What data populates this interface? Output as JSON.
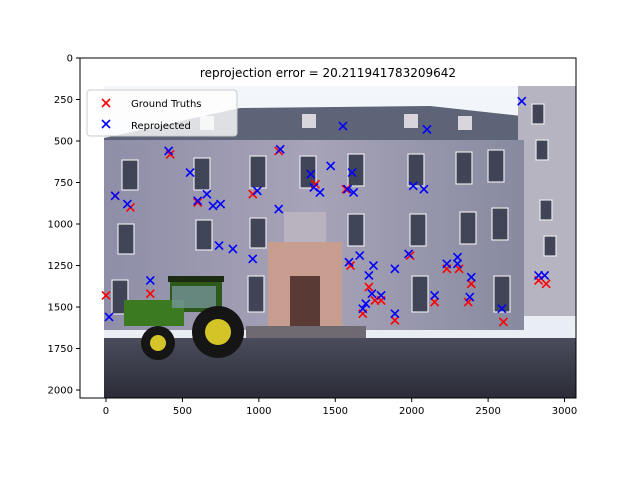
{
  "chart_data": {
    "type": "scatter",
    "title": "reprojection error = 20.211941783209642",
    "xlabel": "",
    "ylabel": "",
    "xlim": [
      -170,
      3075
    ],
    "ylim": [
      2048,
      0
    ],
    "y_inverted": true,
    "xticks": [
      0,
      500,
      1000,
      1500,
      2000,
      2500,
      3000
    ],
    "xtick_labels": [
      "0",
      "500",
      "1000",
      "1500",
      "2000",
      "2500",
      "3000"
    ],
    "yticks": [
      0,
      250,
      500,
      750,
      1000,
      1250,
      1500,
      1750,
      2000
    ],
    "ytick_labels": [
      "0",
      "250",
      "500",
      "750",
      "1000",
      "1250",
      "1500",
      "1750",
      "2000"
    ],
    "grid": false,
    "legend_position": "top-left",
    "background_image": "photo of a baroque palace courtyard with a green tractor, extent x 0–3072, y 0–2048",
    "series": [
      {
        "name": "Ground Truths",
        "color": "#ff0000",
        "marker": "x",
        "x": [
          0,
          290,
          60,
          160,
          420,
          600,
          960,
          1130,
          1370,
          1570,
          1600,
          1680,
          1720,
          1760,
          1800,
          1890,
          1990,
          2150,
          2230,
          2310,
          2370,
          2390,
          2600,
          2830,
          2880
        ],
        "y": [
          1430,
          1420,
          830,
          900,
          580,
          870,
          820,
          560,
          760,
          790,
          1250,
          1540,
          1380,
          1460,
          1460,
          1580,
          1190,
          1470,
          1270,
          1270,
          1470,
          1360,
          1590,
          1340,
          1360
        ]
      },
      {
        "name": "Reprojected",
        "color": "#0000ff",
        "marker": "x",
        "x": [
          20,
          60,
          140,
          290,
          410,
          550,
          600,
          660,
          700,
          750,
          740,
          830,
          960,
          990,
          1130,
          1140,
          1340,
          1360,
          1400,
          1470,
          1550,
          1580,
          1590,
          1610,
          1620,
          1660,
          1680,
          1700,
          1720,
          1740,
          1750,
          1800,
          1890,
          1890,
          1980,
          2010,
          2080,
          2100,
          2150,
          2230,
          2300,
          2300,
          2380,
          2390,
          2590,
          2720,
          2830,
          2870
        ],
        "y": [
          1560,
          830,
          880,
          1340,
          560,
          690,
          860,
          820,
          890,
          880,
          1130,
          1150,
          1210,
          800,
          910,
          550,
          700,
          780,
          810,
          650,
          410,
          790,
          1230,
          690,
          810,
          1190,
          1510,
          1480,
          1310,
          1420,
          1250,
          1430,
          1270,
          1540,
          1180,
          770,
          790,
          430,
          1430,
          1240,
          1200,
          1240,
          1440,
          1320,
          1510,
          260,
          1310,
          1310
        ]
      }
    ]
  }
}
